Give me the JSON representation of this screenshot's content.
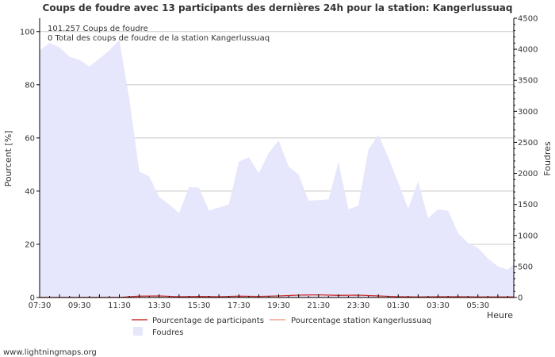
{
  "chart_data": {
    "type": "area",
    "title": "Coups de foudre avec 13 participants des dernières 24h pour la station: Kangerlussuaq",
    "ylabel_left": "Pourcent   [%]",
    "ylabel_right": "Foudres",
    "xlabel": "Heure",
    "x_tick_labels": [
      "07:30",
      "09:30",
      "11:30",
      "13:30",
      "15:30",
      "17:30",
      "19:30",
      "21:30",
      "23:30",
      "01:30",
      "03:30",
      "05:30"
    ],
    "y_left_ticks": [
      "0",
      "20",
      "40",
      "60",
      "80",
      "100"
    ],
    "y_right_ticks": [
      "0",
      "500",
      "1000",
      "1500",
      "2000",
      "2500",
      "3000",
      "3500",
      "4000",
      "4500"
    ],
    "ylim_left": [
      0,
      105
    ],
    "ylim_right": [
      0,
      4500
    ],
    "x_range_hours": [
      0,
      23.8
    ],
    "grid": true,
    "annotation_line1": "101.257  Coups de foudre",
    "annotation_line2": "0 Total des coups de foudre de la station Kangerlussuaq",
    "series": [
      {
        "name": "Foudres",
        "axis": "right",
        "color": "#e6e6fc",
        "x": [
          0,
          0.5,
          1,
          1.5,
          2,
          2.5,
          3,
          3.5,
          4,
          4.5,
          5,
          5.5,
          6,
          6.5,
          7,
          7.5,
          8,
          8.5,
          9,
          9.5,
          10,
          10.5,
          11,
          11.5,
          12,
          12.5,
          13,
          13.5,
          14,
          14.5,
          15,
          15.5,
          16,
          16.5,
          17,
          17.5,
          18,
          18.5,
          19,
          19.5,
          20,
          20.5,
          21,
          21.5,
          22,
          22.5,
          23,
          23.5,
          23.8
        ],
        "values": [
          3980,
          4100,
          4030,
          3880,
          3830,
          3720,
          3850,
          3980,
          4150,
          3200,
          2030,
          1950,
          1620,
          1500,
          1360,
          1780,
          1770,
          1400,
          1450,
          1500,
          2190,
          2260,
          2000,
          2330,
          2530,
          2110,
          1980,
          1560,
          1570,
          1580,
          2180,
          1420,
          1480,
          2380,
          2620,
          2260,
          1850,
          1430,
          1870,
          1280,
          1420,
          1400,
          1040,
          880,
          800,
          630,
          500,
          450,
          530
        ]
      },
      {
        "name": "Pourcentage de participants",
        "axis": "left",
        "color": "#cc3333",
        "x": [
          0,
          1,
          2,
          3,
          4,
          4.5,
          5,
          6,
          7,
          8,
          9,
          10,
          11,
          12,
          13,
          14,
          15,
          16,
          17,
          18,
          19,
          20,
          21,
          22,
          23,
          23.8
        ],
        "values": [
          0,
          0,
          0,
          0,
          0,
          0.3,
          0.5,
          0.6,
          0.3,
          0.4,
          0.3,
          0.5,
          0.4,
          0.6,
          0.9,
          1.0,
          0.8,
          0.9,
          0.6,
          0.3,
          0.2,
          0.3,
          0.3,
          0.2,
          0.2,
          0.2
        ]
      },
      {
        "name": "Pourcentage station Kangerlussuaq",
        "axis": "left",
        "color": "#f0a090",
        "x": [
          0,
          23.8
        ],
        "values": [
          0,
          0
        ]
      }
    ]
  },
  "footer": {
    "source": "www.lightningmaps.org"
  }
}
